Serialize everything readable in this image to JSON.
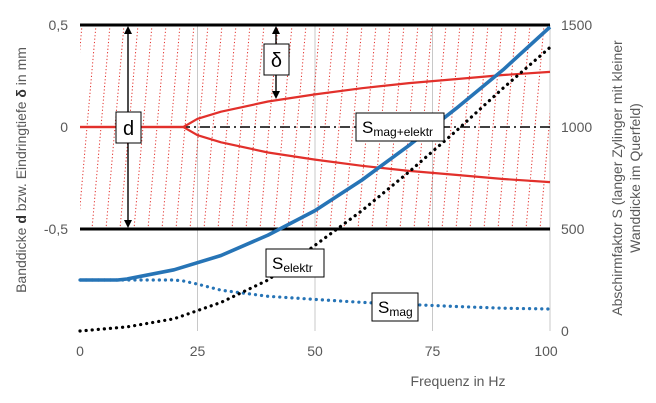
{
  "chart_data": {
    "type": "line",
    "xlabel": "Frequenz in Hz",
    "ylabel_left": {
      "part1": "Banddicke ",
      "d": "d",
      "part2": " bzw. Eindringtiefe ",
      "delta": "δ",
      "part3": " in mm"
    },
    "ylabel_right": {
      "line1": "Abschirmfaktor S (langer Zylinger mit kleiner",
      "line2": "Wanddicke im Querfeld)"
    },
    "xlim": [
      0,
      100
    ],
    "ylim_left": [
      -1,
      0.5
    ],
    "ylim_right": [
      0,
      1500
    ],
    "x_ticks": [
      "0",
      "25",
      "50",
      "75",
      "100"
    ],
    "y_ticks_left": [
      "0,5",
      "0",
      "-0,5"
    ],
    "y_ticks_right": [
      "1500",
      "1000",
      "500",
      "0"
    ],
    "colors": {
      "red": "#e2302b",
      "blue": "#2674b6",
      "black": "#000000",
      "axis_text": "#595959",
      "grid": "#c8c8c8"
    },
    "series": [
      {
        "name": "δ (upper)",
        "axis": "left",
        "color": "#e2302b",
        "x": [
          0,
          22,
          25,
          30,
          40,
          50,
          60,
          70,
          80,
          90,
          100
        ],
        "y": [
          0,
          0,
          0.04,
          0.075,
          0.125,
          0.16,
          0.19,
          0.215,
          0.235,
          0.255,
          0.27
        ]
      },
      {
        "name": "δ (lower)",
        "axis": "left",
        "color": "#e2302b",
        "x": [
          0,
          22,
          25,
          30,
          40,
          50,
          60,
          70,
          80,
          90,
          100
        ],
        "y": [
          0,
          0,
          -0.04,
          -0.075,
          -0.125,
          -0.16,
          -0.19,
          -0.215,
          -0.235,
          -0.255,
          -0.27
        ]
      },
      {
        "name": "Selektr",
        "axis": "right",
        "color": "#2674b6",
        "x": [
          0,
          8,
          10,
          20,
          30,
          40,
          50,
          60,
          70,
          80,
          90,
          100
        ],
        "y": [
          250,
          250,
          255,
          300,
          370,
          470,
          590,
          740,
          910,
          1090,
          1280,
          1490
        ]
      },
      {
        "name": "Smag",
        "axis": "right",
        "color": "#2674b6",
        "dotted": true,
        "x": [
          0,
          10,
          20,
          22,
          25,
          30,
          40,
          50,
          60,
          70,
          80,
          90,
          100
        ],
        "y": [
          250,
          250,
          250,
          245,
          230,
          200,
          170,
          155,
          140,
          130,
          120,
          112,
          108
        ]
      },
      {
        "name": "Smag+elektr",
        "axis": "right",
        "color": "#000000",
        "dotted": true,
        "x": [
          0,
          10,
          20,
          30,
          40,
          50,
          60,
          70,
          80,
          90,
          100
        ],
        "y": [
          0,
          20,
          60,
          140,
          250,
          420,
          590,
          780,
          980,
          1190,
          1390
        ]
      }
    ],
    "annotations": {
      "d": "d",
      "delta": "δ",
      "S_mag_elektr": {
        "base": "S",
        "sub": "mag+elektr"
      },
      "S_elektr": {
        "base": "S",
        "sub": "elektr"
      },
      "S_mag": {
        "base": "S",
        "sub": "mag"
      }
    }
  }
}
